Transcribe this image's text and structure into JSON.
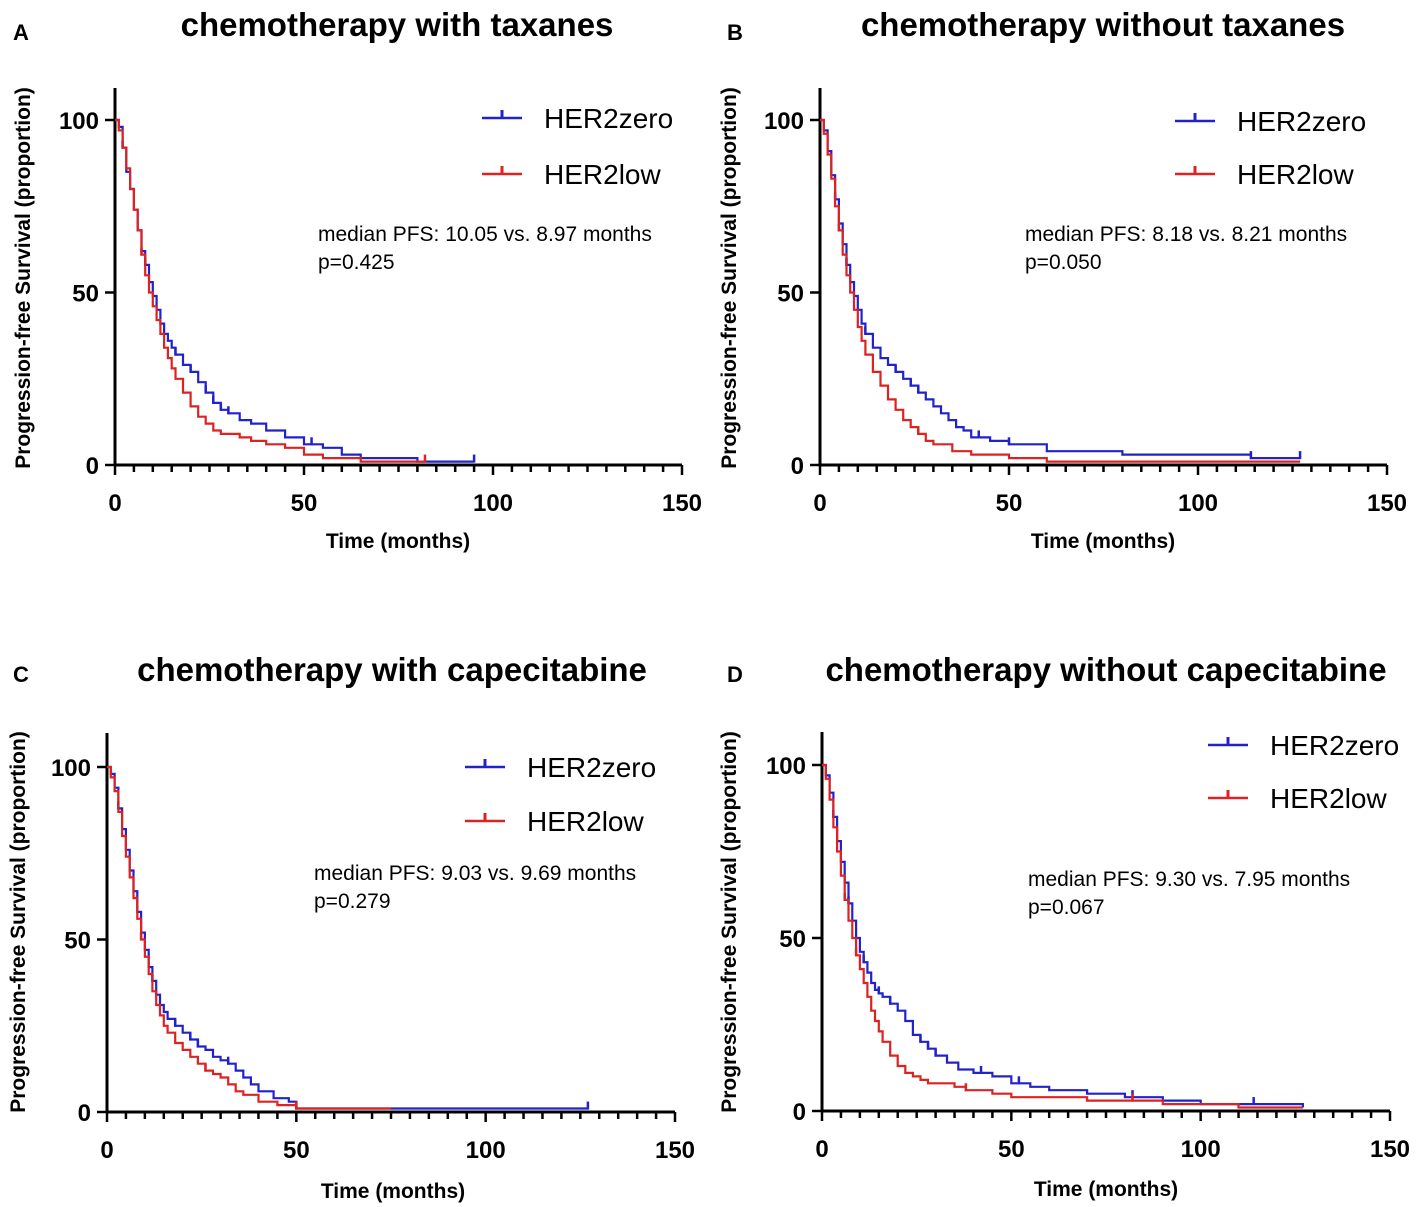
{
  "colors": {
    "HER2zero": "#2222cc",
    "HER2low": "#dd2222",
    "axis": "#000000"
  },
  "chart_data": [
    {
      "type": "line",
      "panel": "A",
      "title": "chemotherapy with taxanes",
      "xlabel": "Time (months)",
      "ylabel": "Progression-free Survival (proportion)",
      "xlim": [
        0,
        150
      ],
      "ylim": [
        0,
        100
      ],
      "xticks": [
        "0",
        "50",
        "100",
        "150"
      ],
      "yticks": [
        "0",
        "50",
        "100"
      ],
      "legend_position": "top-right",
      "annotation": [
        "median PFS:  10.05  vs. 8.97 months",
        "p=0.425"
      ],
      "series": [
        {
          "name": "HER2zero",
          "color": "#2222cc",
          "x": [
            0,
            1,
            2,
            3,
            4,
            5,
            6,
            7,
            8,
            9,
            10,
            11,
            12,
            13,
            14,
            15,
            16,
            18,
            20,
            22,
            24,
            26,
            28,
            30,
            33,
            36,
            40,
            45,
            50,
            55,
            60,
            65,
            70,
            80,
            90,
            95
          ],
          "y": [
            100,
            98,
            92,
            85,
            80,
            74,
            68,
            62,
            58,
            53,
            49,
            45,
            41,
            38,
            36,
            34,
            32,
            29,
            27,
            24,
            21,
            18,
            16,
            15,
            13,
            12,
            10,
            8,
            6,
            5,
            3,
            2,
            2,
            1,
            1,
            1
          ],
          "censor_x": [
            2,
            8,
            16,
            20,
            24,
            26,
            28,
            30,
            52,
            95
          ]
        },
        {
          "name": "HER2low",
          "color": "#dd2222",
          "x": [
            0,
            1,
            2,
            3,
            4,
            5,
            6,
            7,
            8,
            9,
            10,
            11,
            12,
            13,
            14,
            15,
            16,
            18,
            20,
            22,
            24,
            26,
            28,
            30,
            33,
            36,
            40,
            45,
            50,
            55,
            60,
            65,
            70,
            80,
            82
          ],
          "y": [
            100,
            97,
            92,
            86,
            80,
            74,
            68,
            61,
            55,
            50,
            46,
            42,
            38,
            34,
            31,
            28,
            25,
            21,
            17,
            14,
            12,
            10,
            9,
            9,
            8,
            7,
            6,
            5,
            3,
            2,
            2,
            1,
            1,
            1,
            1
          ],
          "censor_x": [
            7,
            82
          ]
        }
      ]
    },
    {
      "type": "line",
      "panel": "B",
      "title": "chemotherapy without taxanes",
      "xlabel": "Time (months)",
      "ylabel": "Progression-free Survival (proportion)",
      "xlim": [
        0,
        150
      ],
      "ylim": [
        0,
        100
      ],
      "xticks": [
        "0",
        "50",
        "100",
        "150"
      ],
      "yticks": [
        "0",
        "50",
        "100"
      ],
      "legend_position": "top-right",
      "annotation": [
        "median PFS:  8.18  vs. 8.21 months",
        "p=0.050"
      ],
      "series": [
        {
          "name": "HER2zero",
          "color": "#2222cc",
          "x": [
            0,
            1,
            2,
            3,
            4,
            5,
            6,
            7,
            8,
            9,
            10,
            11,
            12,
            14,
            16,
            18,
            20,
            22,
            24,
            26,
            28,
            30,
            32,
            34,
            36,
            38,
            40,
            45,
            50,
            60,
            80,
            100,
            114,
            127
          ],
          "y": [
            100,
            97,
            91,
            84,
            77,
            70,
            64,
            58,
            53,
            49,
            45,
            41,
            38,
            34,
            31,
            29,
            27,
            25,
            23,
            21,
            19,
            17,
            15,
            13,
            11,
            10,
            8,
            7,
            6,
            4,
            3,
            3,
            2,
            2
          ],
          "censor_x": [
            4,
            7,
            12,
            20,
            24,
            26,
            42,
            50,
            114,
            127
          ]
        },
        {
          "name": "HER2low",
          "color": "#dd2222",
          "x": [
            0,
            1,
            2,
            3,
            4,
            5,
            6,
            7,
            8,
            9,
            10,
            11,
            12,
            14,
            16,
            18,
            20,
            22,
            24,
            26,
            28,
            30,
            35,
            40,
            50,
            60,
            80,
            100,
            127
          ],
          "y": [
            100,
            96,
            90,
            83,
            75,
            68,
            61,
            55,
            50,
            45,
            40,
            36,
            32,
            27,
            23,
            19,
            16,
            13,
            11,
            9,
            7,
            6,
            4,
            3,
            2,
            1,
            1,
            1,
            1
          ],
          "censor_x": [
            5,
            26
          ]
        }
      ]
    },
    {
      "type": "line",
      "panel": "C",
      "title": "chemotherapy with capecitabine",
      "xlabel": "Time (months)",
      "ylabel": "Progression-free Survival (proportion)",
      "xlim": [
        0,
        150
      ],
      "ylim": [
        0,
        100
      ],
      "xticks": [
        "0",
        "50",
        "100",
        "150"
      ],
      "yticks": [
        "0",
        "50",
        "100"
      ],
      "legend_position": "top-right",
      "annotation": [
        "median PFS:  9.03  vs. 9.69 months",
        "p=0.279"
      ],
      "series": [
        {
          "name": "HER2zero",
          "color": "#2222cc",
          "x": [
            0,
            1,
            2,
            3,
            4,
            5,
            6,
            7,
            8,
            9,
            10,
            11,
            12,
            13,
            14,
            15,
            16,
            18,
            20,
            22,
            24,
            26,
            28,
            30,
            32,
            34,
            36,
            38,
            40,
            44,
            48,
            50,
            60,
            80,
            100,
            127
          ],
          "y": [
            100,
            98,
            94,
            88,
            82,
            76,
            70,
            64,
            58,
            52,
            47,
            42,
            38,
            34,
            31,
            29,
            27,
            25,
            23,
            21,
            19,
            18,
            16,
            15,
            14,
            12,
            10,
            8,
            6,
            4,
            3,
            1,
            1,
            1,
            1,
            1
          ],
          "censor_x": [
            3,
            12,
            18,
            22,
            24,
            32,
            50,
            127
          ]
        },
        {
          "name": "HER2low",
          "color": "#dd2222",
          "x": [
            0,
            1,
            2,
            3,
            4,
            5,
            6,
            7,
            8,
            9,
            10,
            11,
            12,
            13,
            14,
            15,
            16,
            18,
            20,
            22,
            24,
            26,
            28,
            30,
            32,
            34,
            36,
            40,
            45,
            50,
            60,
            70,
            75
          ],
          "y": [
            100,
            97,
            93,
            87,
            80,
            74,
            68,
            62,
            56,
            50,
            45,
            40,
            35,
            31,
            28,
            25,
            23,
            20,
            18,
            16,
            14,
            12,
            11,
            10,
            8,
            6,
            5,
            3,
            2,
            1,
            1,
            1,
            1
          ],
          "censor_x": [
            9,
            26,
            50
          ]
        }
      ]
    },
    {
      "type": "line",
      "panel": "D",
      "title": "chemotherapy without capecitabine",
      "xlabel": "Time (months)",
      "ylabel": "Progression-free Survival (proportion)",
      "xlim": [
        0,
        150
      ],
      "ylim": [
        0,
        100
      ],
      "xticks": [
        "0",
        "50",
        "100",
        "150"
      ],
      "yticks": [
        "0",
        "50",
        "100"
      ],
      "legend_position": "top-right",
      "annotation": [
        "median PFS:  9.30  vs. 7.95 months",
        "p=0.067"
      ],
      "series": [
        {
          "name": "HER2zero",
          "color": "#2222cc",
          "x": [
            0,
            1,
            2,
            3,
            4,
            5,
            6,
            7,
            8,
            9,
            10,
            11,
            12,
            13,
            14,
            15,
            16,
            18,
            20,
            22,
            24,
            26,
            28,
            30,
            33,
            36,
            40,
            45,
            50,
            55,
            60,
            70,
            80,
            90,
            100,
            114,
            127
          ],
          "y": [
            100,
            97,
            92,
            85,
            78,
            72,
            66,
            60,
            55,
            50,
            46,
            43,
            40,
            37,
            35,
            34,
            33,
            31,
            29,
            26,
            22,
            20,
            18,
            16,
            14,
            12,
            11,
            10,
            8,
            7,
            6,
            5,
            4,
            3,
            2,
            2,
            1
          ],
          "censor_x": [
            3,
            7,
            11,
            15,
            18,
            26,
            28,
            30,
            42,
            52,
            82,
            114
          ]
        },
        {
          "name": "HER2low",
          "color": "#dd2222",
          "x": [
            0,
            1,
            2,
            3,
            4,
            5,
            6,
            7,
            8,
            9,
            10,
            11,
            12,
            13,
            14,
            15,
            16,
            18,
            20,
            22,
            24,
            26,
            28,
            30,
            35,
            38,
            45,
            50,
            60,
            70,
            82,
            90,
            100,
            110,
            127
          ],
          "y": [
            100,
            96,
            90,
            82,
            75,
            68,
            61,
            55,
            50,
            45,
            41,
            37,
            33,
            29,
            26,
            23,
            20,
            16,
            13,
            11,
            10,
            9,
            8,
            8,
            7,
            6,
            5,
            4,
            4,
            3,
            3,
            2,
            2,
            1,
            1
          ],
          "censor_x": [
            6,
            9,
            38,
            82
          ]
        }
      ]
    }
  ]
}
